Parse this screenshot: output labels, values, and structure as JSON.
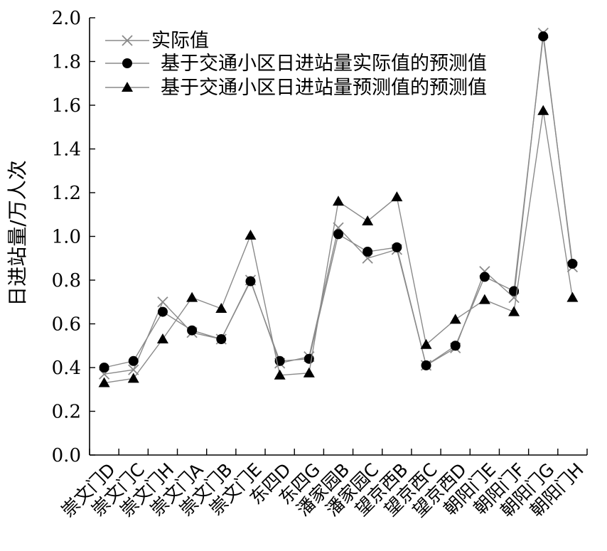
{
  "chart_data": {
    "type": "line",
    "ylabel": "日进站量/万人次",
    "xlabel": "",
    "ylim": [
      0,
      2.0
    ],
    "y_ticks": [
      "0.0",
      "0.2",
      "0.4",
      "0.6",
      "0.8",
      "1.0",
      "1.2",
      "1.4",
      "1.6",
      "1.8",
      "2.0"
    ],
    "grid": false,
    "legend_position": "top-left",
    "categories": [
      "崇文门D",
      "崇文门C",
      "崇文门H",
      "崇文门A",
      "崇文门B",
      "崇文门E",
      "东四D",
      "东四G",
      "潘家园B",
      "潘家园C",
      "望京西B",
      "望京西C",
      "望京西D",
      "朝阳门E",
      "朝阳门F",
      "朝阳门G",
      "朝阳门H"
    ],
    "series": [
      {
        "name": "实际值",
        "marker": "x",
        "color": "#8a8a8a",
        "values": [
          0.37,
          0.39,
          0.7,
          0.56,
          0.53,
          0.8,
          0.42,
          0.45,
          1.04,
          0.9,
          0.94,
          0.41,
          0.49,
          0.84,
          0.72,
          1.93,
          0.86
        ]
      },
      {
        "name": "基于交通小区日进站量实际值的预测值",
        "marker": "circle",
        "color": "#8a8a8a",
        "values": [
          0.4,
          0.43,
          0.655,
          0.57,
          0.53,
          0.795,
          0.43,
          0.44,
          1.01,
          0.93,
          0.95,
          0.41,
          0.5,
          0.815,
          0.75,
          1.915,
          0.875
        ]
      },
      {
        "name": "基于交通小区日进站量预测值的预测值",
        "marker": "triangle",
        "color": "#8a8a8a",
        "values": [
          0.33,
          0.35,
          0.53,
          0.72,
          0.67,
          1.005,
          0.365,
          0.375,
          1.16,
          1.07,
          1.18,
          0.505,
          0.62,
          0.71,
          0.655,
          1.575,
          0.72
        ]
      }
    ]
  }
}
